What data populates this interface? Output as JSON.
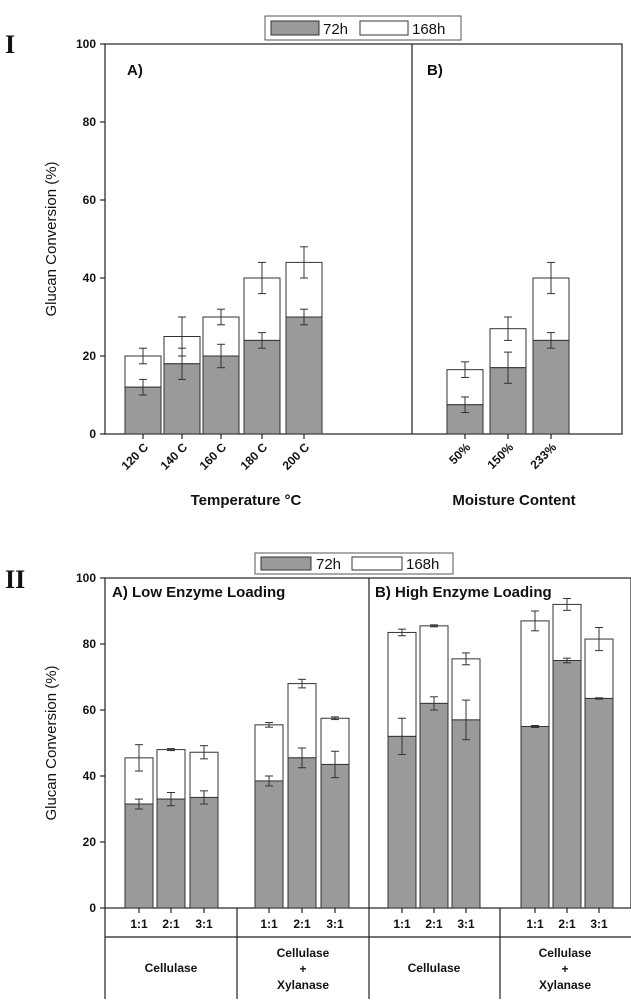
{
  "colors": {
    "bar_72h": "#9a9a9a",
    "bar_168h": "#ffffff",
    "axis": "#222222"
  },
  "legend": {
    "labels": [
      "72h",
      "168h"
    ]
  },
  "panel_I": {
    "roman": "I",
    "chart_data": {
      "type": "bar",
      "stacked": true,
      "ylabel": "Glucan Conversion (%)",
      "ylim": [
        0,
        100
      ],
      "yticks": [
        0,
        20,
        40,
        60,
        80,
        100
      ],
      "series": [
        {
          "name": "72h"
        },
        {
          "name": "168h"
        }
      ],
      "sub_panels": [
        {
          "label": "A)",
          "xlabel": "Temperature °C",
          "categories": [
            "120 C",
            "140 C",
            "160 C",
            "180 C",
            "200 C"
          ],
          "values_72h": [
            12,
            18,
            20,
            24,
            30
          ],
          "err_72h": [
            2,
            4,
            3,
            2,
            2
          ],
          "values_168h_total": [
            20,
            25,
            30,
            40,
            44
          ],
          "err_168h": [
            2,
            5,
            2,
            4,
            4
          ]
        },
        {
          "label": "B)",
          "xlabel": "Moisture Content",
          "categories": [
            "50%",
            "150%",
            "233%"
          ],
          "values_72h": [
            7.5,
            17,
            24
          ],
          "err_72h": [
            2,
            4,
            2
          ],
          "values_168h_total": [
            16.5,
            27,
            40
          ],
          "err_168h": [
            2,
            3,
            4
          ]
        }
      ]
    }
  },
  "panel_II": {
    "roman": "II",
    "chart_data": {
      "type": "bar",
      "stacked": true,
      "ylabel": "Glucan Conversion (%)",
      "ylim": [
        0,
        100
      ],
      "yticks": [
        0,
        20,
        40,
        60,
        80,
        100
      ],
      "series": [
        {
          "name": "72h"
        },
        {
          "name": "168h"
        }
      ],
      "sub_panels": [
        {
          "label": "A) Low Enzyme Loading",
          "groups": [
            {
              "name": "Cellulase",
              "categories": [
                "1:1",
                "2:1",
                "3:1"
              ],
              "values_72h": [
                31.5,
                33,
                33.5
              ],
              "err_72h": [
                1.5,
                2,
                2
              ],
              "values_168h_total": [
                45.5,
                48,
                47.2
              ],
              "err_168h": [
                4,
                0.3,
                2
              ]
            },
            {
              "name": "Cellulase + Xylanase",
              "categories": [
                "1:1",
                "2:1",
                "3:1"
              ],
              "values_72h": [
                38.5,
                45.5,
                43.5
              ],
              "err_72h": [
                1.5,
                3,
                4
              ],
              "values_168h_total": [
                55.5,
                68,
                57.5
              ],
              "err_168h": [
                0.7,
                1.3,
                0.4
              ]
            }
          ]
        },
        {
          "label": "B) High Enzyme Loading",
          "groups": [
            {
              "name": "Cellulase",
              "categories": [
                "1:1",
                "2:1",
                "3:1"
              ],
              "values_72h": [
                52,
                62,
                57
              ],
              "err_72h": [
                5.5,
                2,
                6
              ],
              "values_168h_total": [
                83.5,
                85.5,
                75.5
              ],
              "err_168h": [
                1,
                0.3,
                1.8
              ]
            },
            {
              "name": "Cellulase + Xylanase",
              "categories": [
                "1:1",
                "2:1",
                "3:1"
              ],
              "values_72h": [
                55,
                75,
                63.5
              ],
              "err_72h": [
                0.3,
                0.7,
                0.2
              ],
              "values_168h_total": [
                87,
                92,
                81.5
              ],
              "err_168h": [
                3,
                1.8,
                3.5
              ]
            }
          ]
        }
      ]
    }
  }
}
